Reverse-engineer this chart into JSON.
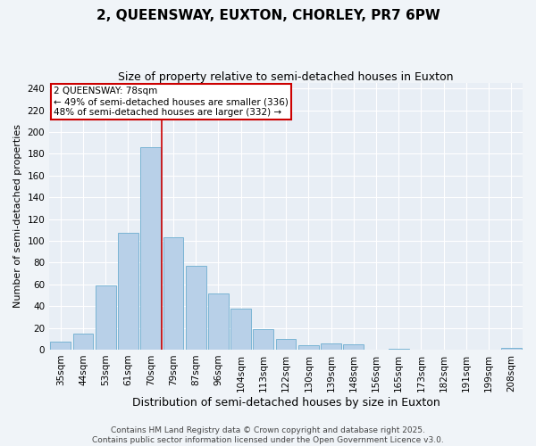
{
  "title": "2, QUEENSWAY, EUXTON, CHORLEY, PR7 6PW",
  "subtitle": "Size of property relative to semi-detached houses in Euxton",
  "xlabel": "Distribution of semi-detached houses by size in Euxton",
  "ylabel": "Number of semi-detached properties",
  "categories": [
    "35sqm",
    "44sqm",
    "53sqm",
    "61sqm",
    "70sqm",
    "79sqm",
    "87sqm",
    "96sqm",
    "104sqm",
    "113sqm",
    "122sqm",
    "130sqm",
    "139sqm",
    "148sqm",
    "156sqm",
    "165sqm",
    "173sqm",
    "182sqm",
    "191sqm",
    "199sqm",
    "208sqm"
  ],
  "values": [
    7,
    15,
    59,
    107,
    186,
    103,
    77,
    52,
    38,
    19,
    10,
    4,
    6,
    5,
    0,
    1,
    0,
    0,
    0,
    0,
    2
  ],
  "bar_color": "#b8d0e8",
  "bar_edge_color": "#7ab4d4",
  "vline_x_index": 4,
  "vline_color": "#cc0000",
  "annotation_line1": "2 QUEENSWAY: 78sqm",
  "annotation_line2": "← 49% of semi-detached houses are smaller (336)",
  "annotation_line3": "48% of semi-detached houses are larger (332) →",
  "annotation_box_color": "#ffffff",
  "annotation_box_edge_color": "#cc0000",
  "ylim": [
    0,
    245
  ],
  "yticks": [
    0,
    20,
    40,
    60,
    80,
    100,
    120,
    140,
    160,
    180,
    200,
    220,
    240
  ],
  "plot_bg_color": "#e8eef5",
  "fig_bg_color": "#f0f4f8",
  "footer_text": "Contains HM Land Registry data © Crown copyright and database right 2025.\nContains public sector information licensed under the Open Government Licence v3.0.",
  "title_fontsize": 11,
  "subtitle_fontsize": 9,
  "xlabel_fontsize": 9,
  "ylabel_fontsize": 8,
  "tick_fontsize": 7.5,
  "annotation_fontsize": 7.5,
  "footer_fontsize": 6.5
}
